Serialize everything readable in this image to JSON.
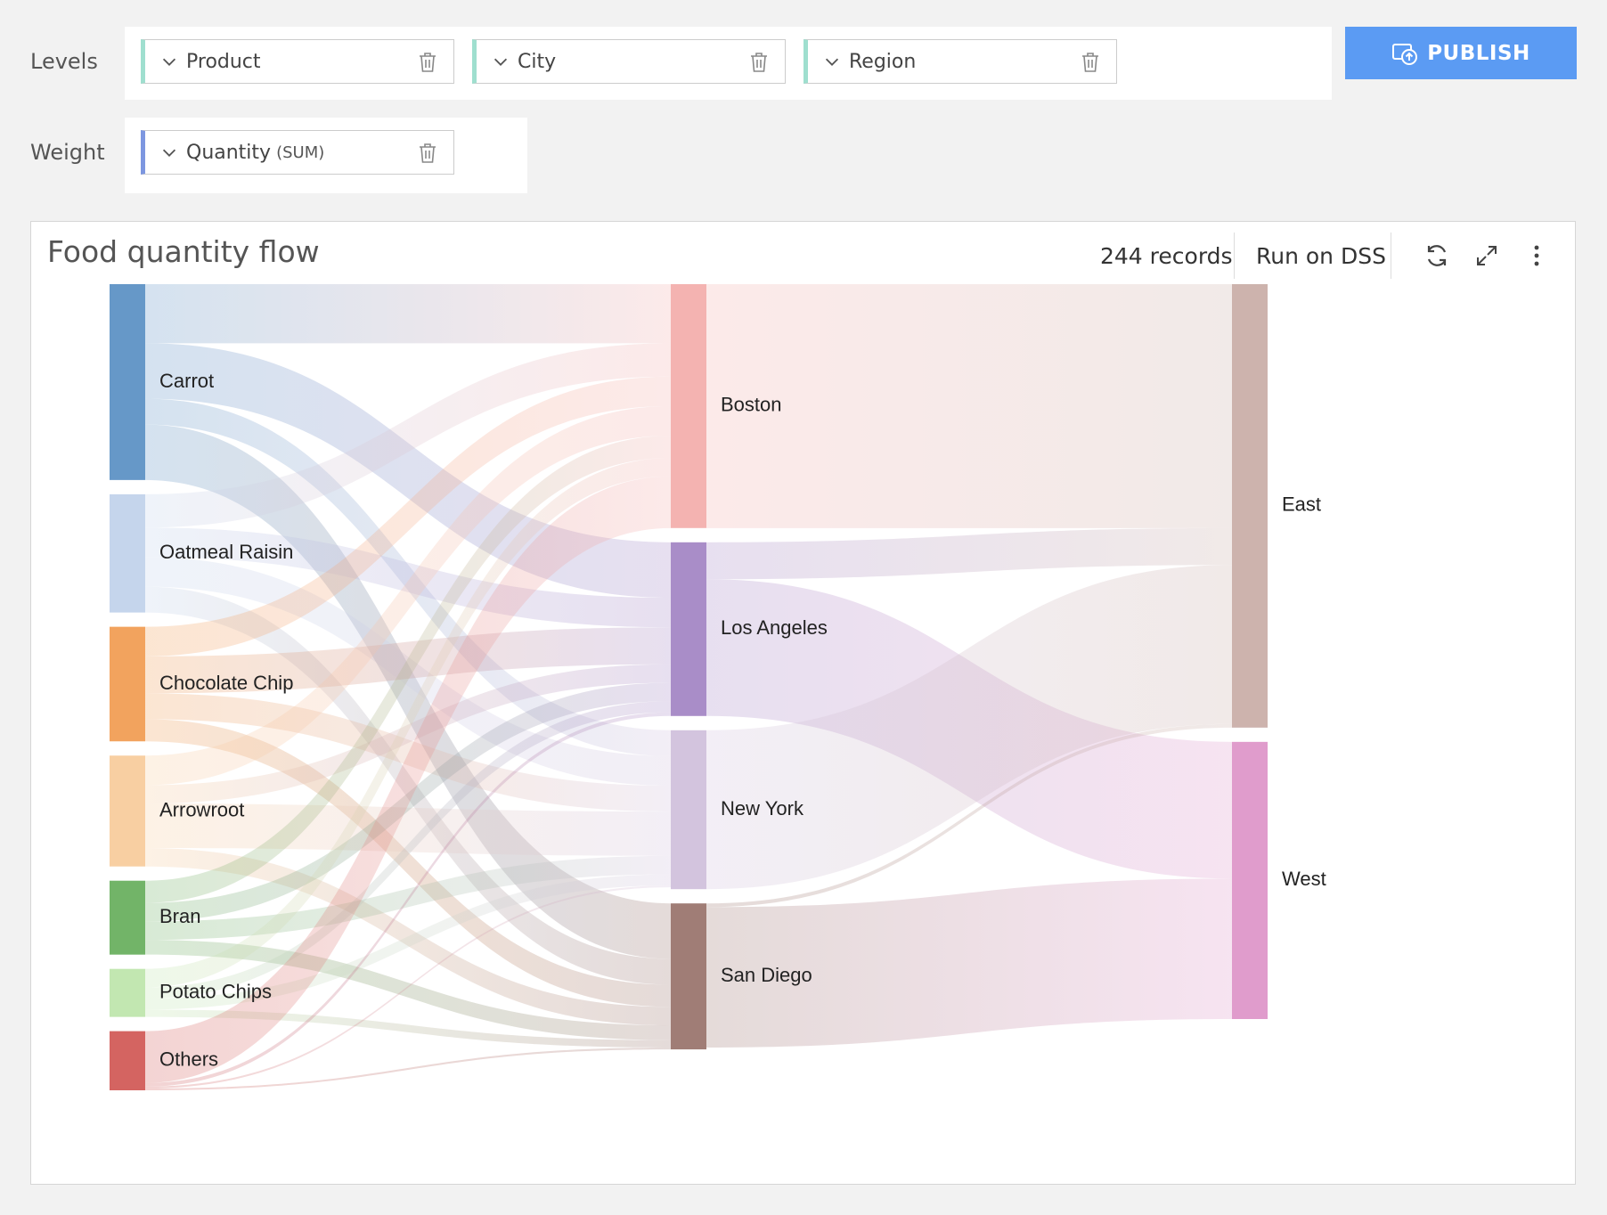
{
  "levels": {
    "label": "Levels",
    "items": [
      {
        "name": "Product"
      },
      {
        "name": "City"
      },
      {
        "name": "Region"
      }
    ]
  },
  "weight": {
    "label": "Weight",
    "column": "Quantity",
    "aggregation": "(SUM)"
  },
  "publish": {
    "label": "PUBLISH",
    "color": "#5b9bf3"
  },
  "chart_card": {
    "title": "Food quantity flow",
    "records": "244 records",
    "run_label": "Run on DSS"
  },
  "chart_data": {
    "type": "sankey",
    "levels": [
      [
        "Carrot",
        "Oatmeal Raisin",
        "Chocolate Chip",
        "Arrowroot",
        "Bran",
        "Potato Chips",
        "Others"
      ],
      [
        "Boston",
        "Los Angeles",
        "New York",
        "San Diego"
      ],
      [
        "East",
        "West"
      ]
    ],
    "nodes": [
      {
        "name": "Carrot",
        "color": "#6698c8"
      },
      {
        "name": "Oatmeal Raisin",
        "color": "#c5d5ec"
      },
      {
        "name": "Chocolate Chip",
        "color": "#f2a35e"
      },
      {
        "name": "Arrowroot",
        "color": "#f8cfa2"
      },
      {
        "name": "Bran",
        "color": "#72b468"
      },
      {
        "name": "Potato Chips",
        "color": "#c2e7b1"
      },
      {
        "name": "Others",
        "color": "#d46461"
      },
      {
        "name": "Boston",
        "color": "#f4b3b1"
      },
      {
        "name": "Los Angeles",
        "color": "#a98dc8"
      },
      {
        "name": "New York",
        "color": "#d3c4de"
      },
      {
        "name": "San Diego",
        "color": "#a07d76"
      },
      {
        "name": "East",
        "color": "#cdb3ad"
      },
      {
        "name": "West",
        "color": "#e09ccc"
      }
    ],
    "links": [
      {
        "source": "Carrot",
        "target": "Boston",
        "value": 16
      },
      {
        "source": "Carrot",
        "target": "Los Angeles",
        "value": 15
      },
      {
        "source": "Carrot",
        "target": "New York",
        "value": 7
      },
      {
        "source": "Carrot",
        "target": "San Diego",
        "value": 15
      },
      {
        "source": "Oatmeal Raisin",
        "target": "Boston",
        "value": 9
      },
      {
        "source": "Oatmeal Raisin",
        "target": "Los Angeles",
        "value": 8
      },
      {
        "source": "Oatmeal Raisin",
        "target": "New York",
        "value": 8
      },
      {
        "source": "Oatmeal Raisin",
        "target": "San Diego",
        "value": 7
      },
      {
        "source": "Chocolate Chip",
        "target": "Boston",
        "value": 8
      },
      {
        "source": "Chocolate Chip",
        "target": "Los Angeles",
        "value": 10
      },
      {
        "source": "Chocolate Chip",
        "target": "New York",
        "value": 7
      },
      {
        "source": "Chocolate Chip",
        "target": "San Diego",
        "value": 6
      },
      {
        "source": "Arrowroot",
        "target": "Boston",
        "value": 8
      },
      {
        "source": "Arrowroot",
        "target": "Los Angeles",
        "value": 5
      },
      {
        "source": "Arrowroot",
        "target": "New York",
        "value": 12
      },
      {
        "source": "Arrowroot",
        "target": "San Diego",
        "value": 5
      },
      {
        "source": "Bran",
        "target": "Boston",
        "value": 6
      },
      {
        "source": "Bran",
        "target": "Los Angeles",
        "value": 5
      },
      {
        "source": "Bran",
        "target": "New York",
        "value": 5
      },
      {
        "source": "Bran",
        "target": "San Diego",
        "value": 4
      },
      {
        "source": "Potato Chips",
        "target": "Boston",
        "value": 5
      },
      {
        "source": "Potato Chips",
        "target": "Los Angeles",
        "value": 3
      },
      {
        "source": "Potato Chips",
        "target": "New York",
        "value": 3
      },
      {
        "source": "Potato Chips",
        "target": "San Diego",
        "value": 2
      },
      {
        "source": "Others",
        "target": "Boston",
        "value": 14
      },
      {
        "source": "Others",
        "target": "Los Angeles",
        "value": 1
      },
      {
        "source": "Others",
        "target": "New York",
        "value": 0.5
      },
      {
        "source": "Others",
        "target": "San Diego",
        "value": 0.5
      },
      {
        "source": "Boston",
        "target": "East",
        "value": 66
      },
      {
        "source": "Los Angeles",
        "target": "East",
        "value": 10
      },
      {
        "source": "Los Angeles",
        "target": "West",
        "value": 37
      },
      {
        "source": "New York",
        "target": "East",
        "value": 43
      },
      {
        "source": "New York",
        "target": "West",
        "value": 0
      },
      {
        "source": "San Diego",
        "target": "East",
        "value": 1
      },
      {
        "source": "San Diego",
        "target": "West",
        "value": 38
      }
    ]
  }
}
